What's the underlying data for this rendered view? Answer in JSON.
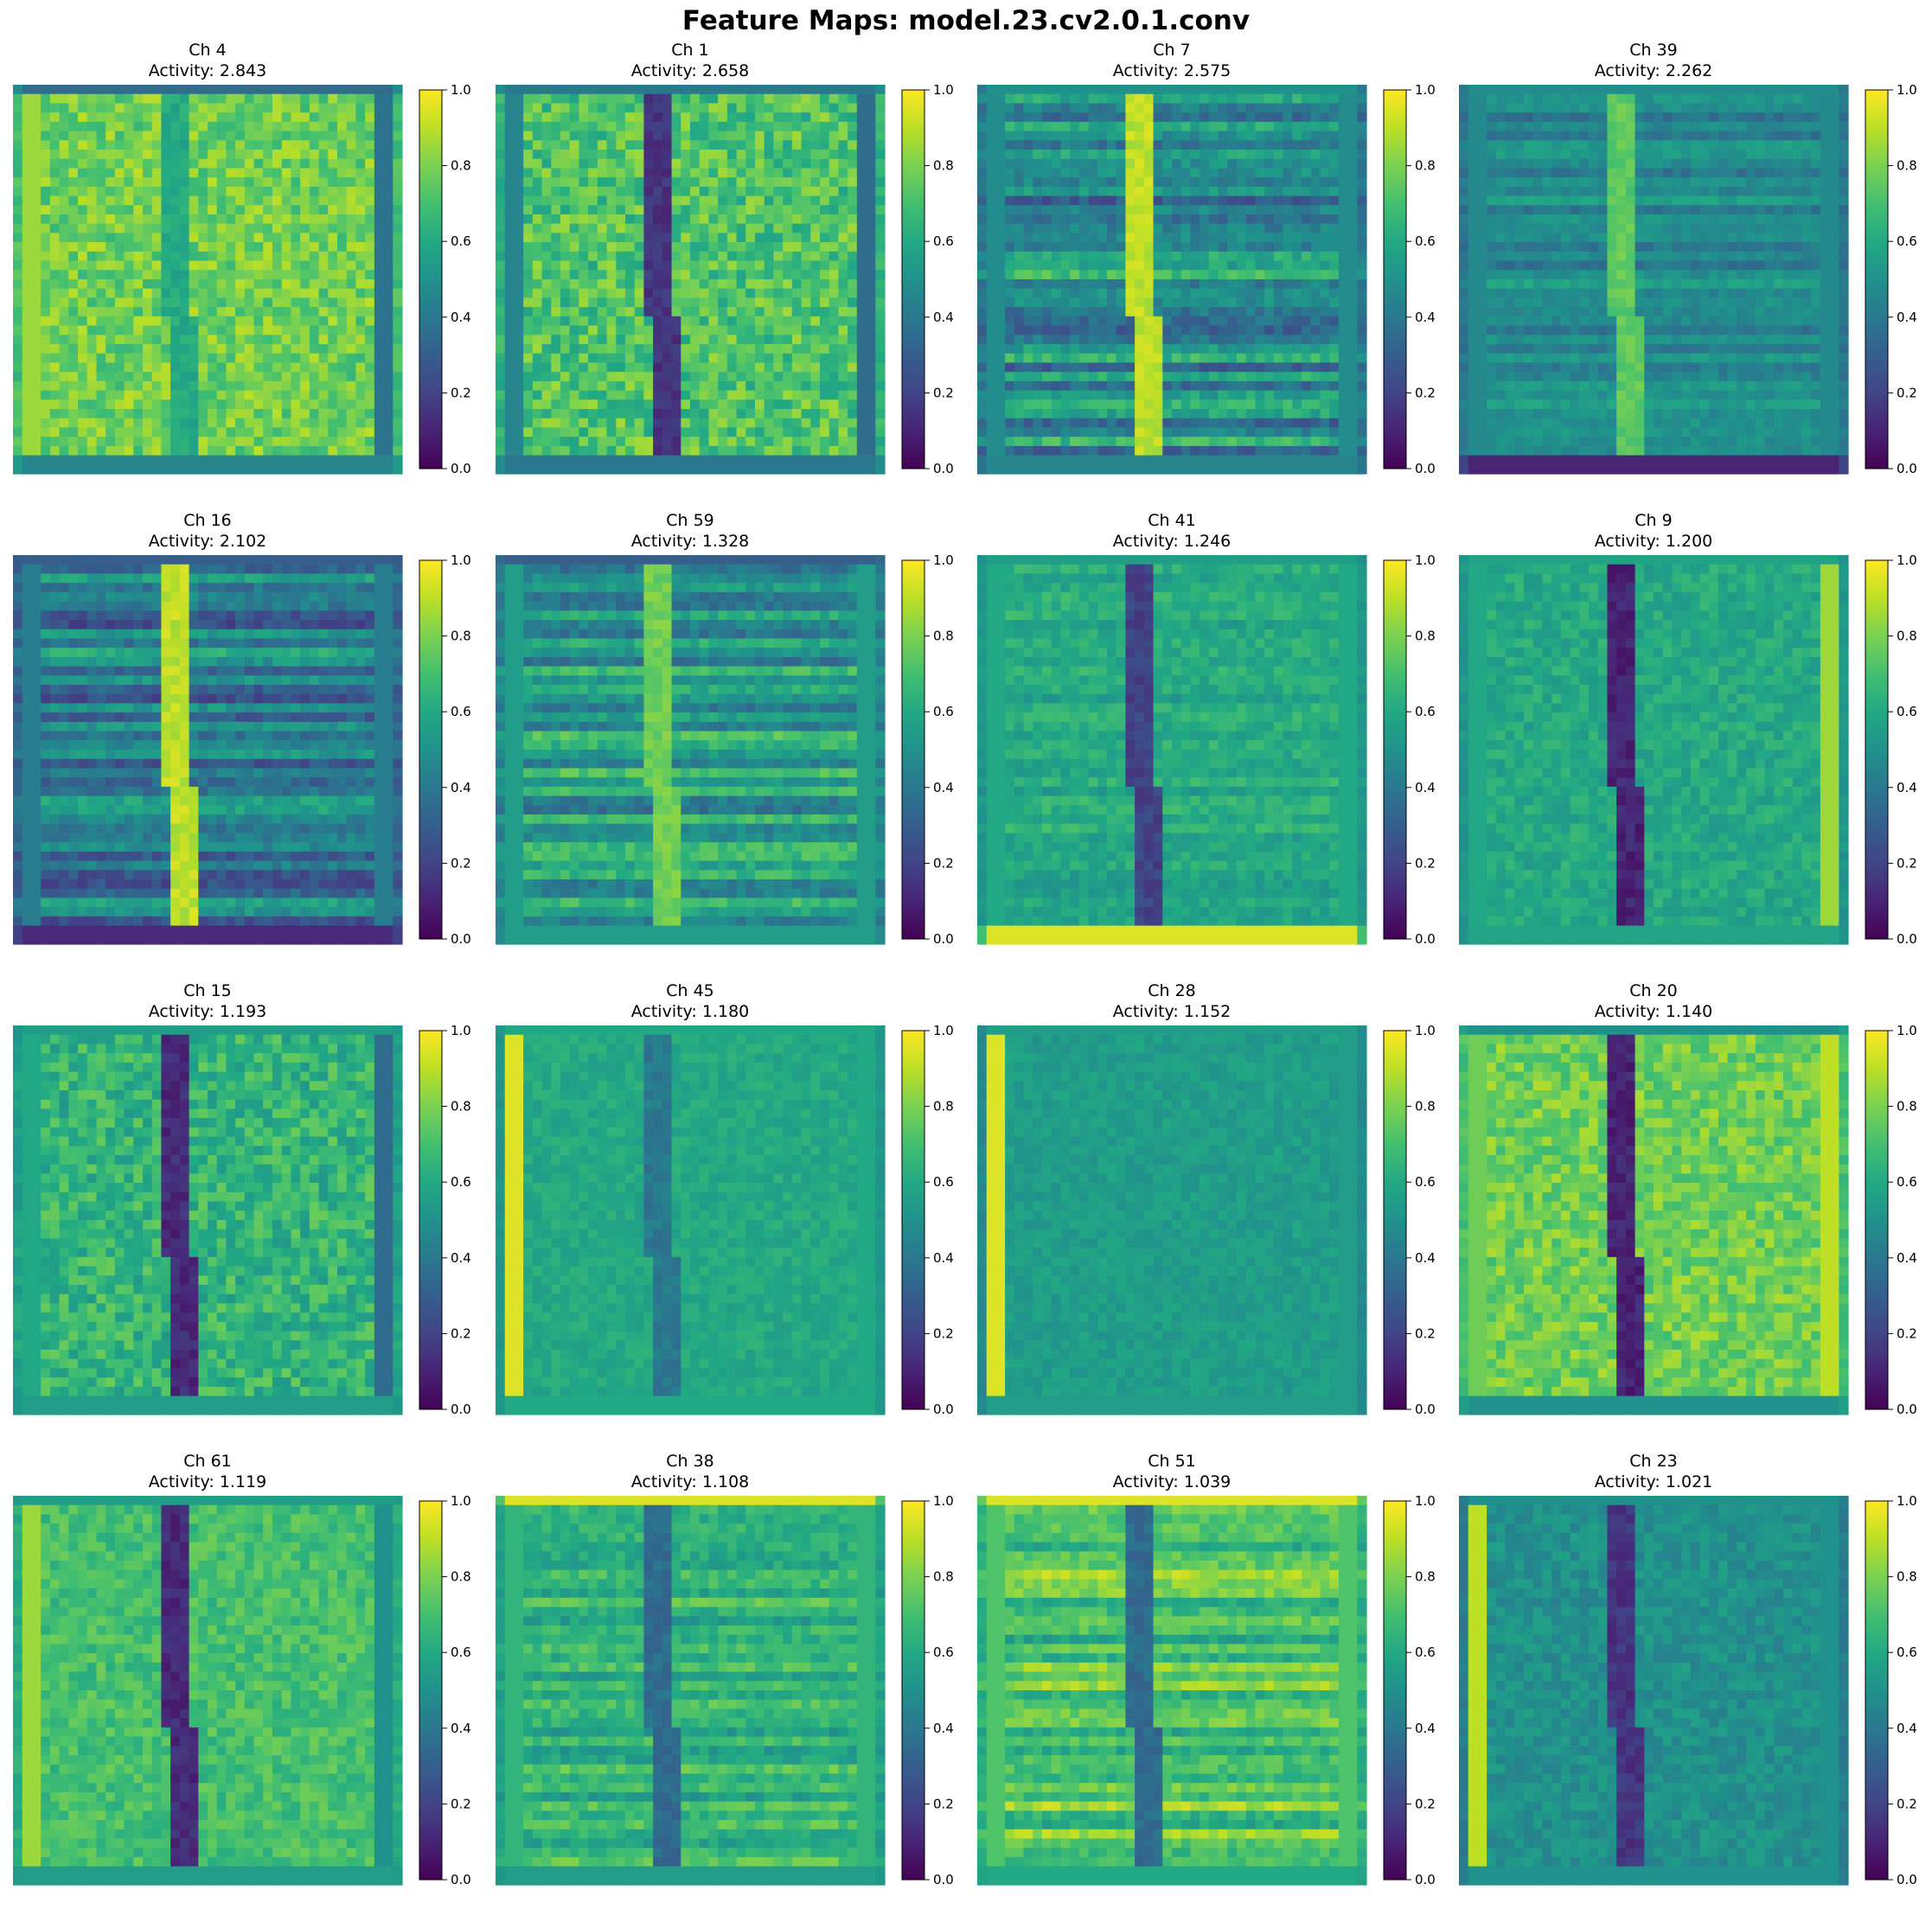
{
  "title": "Feature Maps: model.23.cv2.0.1.conv",
  "chart_data": {
    "type": "heatmap",
    "title": "Feature Maps: model.23.cv2.0.1.conv",
    "colormap": "viridis",
    "colorbar_range": [
      0,
      1
    ],
    "colorbar_ticks": [
      "0.0",
      "0.2",
      "0.4",
      "0.6",
      "0.8",
      "1.0"
    ],
    "grid": "4x4",
    "panels": [
      {
        "channel": "Ch 4",
        "activity_label": "Activity: 2.843",
        "activity": 2.843,
        "base": 0.78,
        "spine": 0.6,
        "lbar": 0.85,
        "rbar": 0.38,
        "top": 0.35,
        "bot": 0.45,
        "stripe": 0.0,
        "noise": 0.12
      },
      {
        "channel": "Ch 1",
        "activity_label": "Activity: 2.658",
        "activity": 2.658,
        "base": 0.72,
        "spine": 0.15,
        "lbar": 0.45,
        "rbar": 0.35,
        "top": 0.4,
        "bot": 0.4,
        "stripe": 0.0,
        "noise": 0.14
      },
      {
        "channel": "Ch 7",
        "activity_label": "Activity: 2.575",
        "activity": 2.575,
        "base": 0.48,
        "spine": 0.9,
        "lbar": 0.48,
        "rbar": 0.48,
        "top": 0.5,
        "bot": 0.45,
        "stripe": 0.22,
        "noise": 0.08
      },
      {
        "channel": "Ch 39",
        "activity_label": "Activity: 2.262",
        "activity": 2.262,
        "base": 0.47,
        "spine": 0.75,
        "lbar": 0.47,
        "rbar": 0.47,
        "top": 0.48,
        "bot": 0.1,
        "stripe": 0.1,
        "noise": 0.05
      },
      {
        "channel": "Ch 16",
        "activity_label": "Activity: 2.102",
        "activity": 2.102,
        "base": 0.42,
        "spine": 0.9,
        "lbar": 0.42,
        "rbar": 0.42,
        "top": 0.3,
        "bot": 0.12,
        "stripe": 0.2,
        "noise": 0.07
      },
      {
        "channel": "Ch 59",
        "activity_label": "Activity: 1.328",
        "activity": 1.328,
        "base": 0.55,
        "spine": 0.78,
        "lbar": 0.55,
        "rbar": 0.55,
        "top": 0.3,
        "bot": 0.55,
        "stripe": 0.18,
        "noise": 0.07
      },
      {
        "channel": "Ch 41",
        "activity_label": "Activity: 1.246",
        "activity": 1.246,
        "base": 0.6,
        "spine": 0.2,
        "lbar": 0.6,
        "rbar": 0.6,
        "top": 0.55,
        "bot": 0.95,
        "stripe": 0.05,
        "noise": 0.06
      },
      {
        "channel": "Ch 9",
        "activity_label": "Activity: 1.200",
        "activity": 1.2,
        "base": 0.6,
        "spine": 0.1,
        "lbar": 0.6,
        "rbar": 0.85,
        "top": 0.58,
        "bot": 0.58,
        "stripe": 0.0,
        "noise": 0.07
      },
      {
        "channel": "Ch 15",
        "activity_label": "Activity: 1.193",
        "activity": 1.193,
        "base": 0.65,
        "spine": 0.12,
        "lbar": 0.6,
        "rbar": 0.35,
        "top": 0.55,
        "bot": 0.55,
        "stripe": 0.0,
        "noise": 0.12
      },
      {
        "channel": "Ch 45",
        "activity_label": "Activity: 1.180",
        "activity": 1.18,
        "base": 0.6,
        "spine": 0.4,
        "lbar": 0.95,
        "rbar": 0.6,
        "top": 0.6,
        "bot": 0.6,
        "stripe": 0.0,
        "noise": 0.05
      },
      {
        "channel": "Ch 28",
        "activity_label": "Activity: 1.152",
        "activity": 1.152,
        "base": 0.55,
        "spine": 0.55,
        "lbar": 0.95,
        "rbar": 0.55,
        "top": 0.55,
        "bot": 0.55,
        "stripe": 0.0,
        "noise": 0.05
      },
      {
        "channel": "Ch 20",
        "activity_label": "Activity: 1.140",
        "activity": 1.14,
        "base": 0.78,
        "spine": 0.1,
        "lbar": 0.78,
        "rbar": 0.9,
        "top": 0.5,
        "bot": 0.5,
        "stripe": 0.0,
        "noise": 0.1
      },
      {
        "channel": "Ch 61",
        "activity_label": "Activity: 1.119",
        "activity": 1.119,
        "base": 0.7,
        "spine": 0.12,
        "lbar": 0.85,
        "rbar": 0.5,
        "top": 0.55,
        "bot": 0.55,
        "stripe": 0.0,
        "noise": 0.08
      },
      {
        "channel": "Ch 38",
        "activity_label": "Activity: 1.108",
        "activity": 1.108,
        "base": 0.65,
        "spine": 0.35,
        "lbar": 0.65,
        "rbar": 0.65,
        "top": 0.95,
        "bot": 0.55,
        "stripe": 0.1,
        "noise": 0.07
      },
      {
        "channel": "Ch 51",
        "activity_label": "Activity: 1.039",
        "activity": 1.039,
        "base": 0.72,
        "spine": 0.35,
        "lbar": 0.72,
        "rbar": 0.72,
        "top": 0.95,
        "bot": 0.6,
        "stripe": 0.15,
        "noise": 0.07
      },
      {
        "channel": "Ch 23",
        "activity_label": "Activity: 1.021",
        "activity": 1.021,
        "base": 0.5,
        "spine": 0.15,
        "lbar": 0.9,
        "rbar": 0.5,
        "top": 0.5,
        "bot": 0.5,
        "stripe": 0.0,
        "noise": 0.07
      }
    ]
  }
}
